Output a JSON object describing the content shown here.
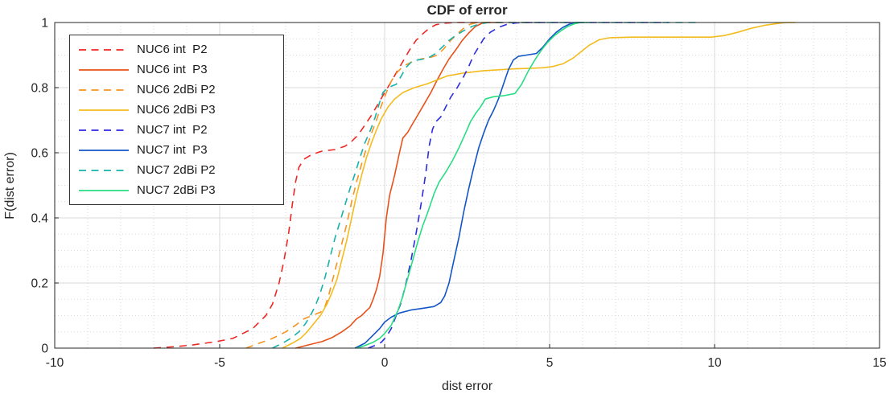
{
  "figure": {
    "title": "CDF of error",
    "xlabel": "dist error",
    "ylabel": "F(dist error)"
  },
  "axes": {
    "x": {
      "min": -10,
      "max": 15,
      "ticks": [
        -10,
        -5,
        0,
        5,
        10,
        15
      ],
      "tick_labels": [
        "-10",
        "-5",
        "0",
        "5",
        "10",
        "15"
      ],
      "minor_step": 1
    },
    "y": {
      "min": 0,
      "max": 1,
      "ticks": [
        0,
        0.2,
        0.4,
        0.6,
        0.8,
        1
      ],
      "tick_labels": [
        "0",
        "0.2",
        "0.4",
        "0.6",
        "0.8",
        "1"
      ],
      "minor_step": 0.05
    }
  },
  "style": {
    "axis_color": "#262626",
    "major_grid_color": "#d9d9d9",
    "minor_grid_color": "#d9d9d9",
    "background": "#ffffff"
  },
  "chart_data": {
    "type": "line",
    "title": "CDF of error",
    "xlabel": "dist error",
    "ylabel": "F(dist error)",
    "xlim": [
      -10,
      15
    ],
    "ylim": [
      0,
      1
    ],
    "grid": "major solid + minor dotted (x step 1, y step 0.05)",
    "legend_position": "top-left",
    "series": [
      {
        "name": "NUC6 int  P2",
        "color": "#ee2624",
        "dashed": true,
        "points": [
          [
            -7,
            0
          ],
          [
            -6.3,
            0.005
          ],
          [
            -5.8,
            0.01
          ],
          [
            -5.1,
            0.02
          ],
          [
            -4.6,
            0.03
          ],
          [
            -4.3,
            0.045
          ],
          [
            -4.0,
            0.06
          ],
          [
            -3.8,
            0.08
          ],
          [
            -3.6,
            0.1
          ],
          [
            -3.4,
            0.135
          ],
          [
            -3.2,
            0.2
          ],
          [
            -3.05,
            0.27
          ],
          [
            -2.9,
            0.36
          ],
          [
            -2.8,
            0.44
          ],
          [
            -2.7,
            0.51
          ],
          [
            -2.6,
            0.555
          ],
          [
            -2.45,
            0.58
          ],
          [
            -2.2,
            0.595
          ],
          [
            -1.9,
            0.605
          ],
          [
            -1.5,
            0.61
          ],
          [
            -1.2,
            0.62
          ],
          [
            -1.0,
            0.635
          ],
          [
            -0.8,
            0.655
          ],
          [
            -0.6,
            0.685
          ],
          [
            -0.4,
            0.715
          ],
          [
            -0.2,
            0.75
          ],
          [
            0,
            0.785
          ],
          [
            0.15,
            0.81
          ],
          [
            0.35,
            0.845
          ],
          [
            0.55,
            0.88
          ],
          [
            0.75,
            0.915
          ],
          [
            0.95,
            0.945
          ],
          [
            1.15,
            0.965
          ],
          [
            1.35,
            0.982
          ],
          [
            1.55,
            0.993
          ],
          [
            1.8,
            0.998
          ],
          [
            2.2,
            1
          ],
          [
            4.7,
            1
          ]
        ]
      },
      {
        "name": "NUC6 int  P3",
        "color": "#e8521a",
        "dashed": false,
        "points": [
          [
            -2.7,
            0
          ],
          [
            -2.3,
            0.01
          ],
          [
            -1.9,
            0.02
          ],
          [
            -1.6,
            0.032
          ],
          [
            -1.3,
            0.05
          ],
          [
            -1.05,
            0.068
          ],
          [
            -0.85,
            0.09
          ],
          [
            -0.7,
            0.1
          ],
          [
            -0.55,
            0.115
          ],
          [
            -0.45,
            0.125
          ],
          [
            -0.35,
            0.15
          ],
          [
            -0.25,
            0.18
          ],
          [
            -0.15,
            0.22
          ],
          [
            -0.05,
            0.29
          ],
          [
            0.05,
            0.4
          ],
          [
            0.15,
            0.47
          ],
          [
            0.3,
            0.53
          ],
          [
            0.45,
            0.6
          ],
          [
            0.55,
            0.645
          ],
          [
            0.7,
            0.663
          ],
          [
            0.85,
            0.69
          ],
          [
            1.0,
            0.715
          ],
          [
            1.2,
            0.75
          ],
          [
            1.4,
            0.785
          ],
          [
            1.6,
            0.825
          ],
          [
            1.8,
            0.862
          ],
          [
            1.95,
            0.888
          ],
          [
            2.15,
            0.915
          ],
          [
            2.35,
            0.945
          ],
          [
            2.55,
            0.968
          ],
          [
            2.75,
            0.988
          ],
          [
            3.0,
            1
          ],
          [
            3.5,
            1
          ]
        ]
      },
      {
        "name": "NUC6 2dBi P2",
        "color": "#f79320",
        "dashed": true,
        "points": [
          [
            -4.2,
            0
          ],
          [
            -3.8,
            0.015
          ],
          [
            -3.4,
            0.03
          ],
          [
            -3.0,
            0.05
          ],
          [
            -2.7,
            0.07
          ],
          [
            -2.45,
            0.09
          ],
          [
            -2.2,
            0.1
          ],
          [
            -1.95,
            0.11
          ],
          [
            -1.8,
            0.13
          ],
          [
            -1.7,
            0.16
          ],
          [
            -1.6,
            0.2
          ],
          [
            -1.45,
            0.26
          ],
          [
            -1.3,
            0.32
          ],
          [
            -1.15,
            0.38
          ],
          [
            -1.0,
            0.45
          ],
          [
            -0.85,
            0.51
          ],
          [
            -0.7,
            0.565
          ],
          [
            -0.55,
            0.615
          ],
          [
            -0.4,
            0.66
          ],
          [
            -0.25,
            0.7
          ],
          [
            -0.1,
            0.745
          ],
          [
            0.05,
            0.785
          ],
          [
            0.2,
            0.82
          ],
          [
            0.4,
            0.85
          ],
          [
            0.6,
            0.868
          ],
          [
            0.85,
            0.88
          ],
          [
            1.1,
            0.888
          ],
          [
            1.4,
            0.893
          ],
          [
            1.6,
            0.9
          ],
          [
            1.8,
            0.92
          ],
          [
            2.0,
            0.945
          ],
          [
            2.2,
            0.965
          ],
          [
            2.4,
            0.983
          ],
          [
            2.6,
            0.995
          ],
          [
            2.8,
            1
          ],
          [
            3.1,
            1
          ]
        ]
      },
      {
        "name": "NUC6 2dBi P3",
        "color": "#f3bc1e",
        "dashed": false,
        "points": [
          [
            -3.1,
            0
          ],
          [
            -2.8,
            0.015
          ],
          [
            -2.55,
            0.03
          ],
          [
            -2.35,
            0.05
          ],
          [
            -2.15,
            0.075
          ],
          [
            -1.95,
            0.1
          ],
          [
            -1.75,
            0.135
          ],
          [
            -1.6,
            0.17
          ],
          [
            -1.45,
            0.21
          ],
          [
            -1.3,
            0.27
          ],
          [
            -1.15,
            0.33
          ],
          [
            -1.0,
            0.4
          ],
          [
            -0.85,
            0.47
          ],
          [
            -0.7,
            0.53
          ],
          [
            -0.55,
            0.585
          ],
          [
            -0.4,
            0.63
          ],
          [
            -0.25,
            0.67
          ],
          [
            -0.1,
            0.705
          ],
          [
            0.1,
            0.74
          ],
          [
            0.3,
            0.765
          ],
          [
            0.55,
            0.785
          ],
          [
            0.9,
            0.8
          ],
          [
            1.3,
            0.812
          ],
          [
            1.9,
            0.836
          ],
          [
            2.4,
            0.845
          ],
          [
            3.0,
            0.852
          ],
          [
            3.8,
            0.857
          ],
          [
            4.8,
            0.861
          ],
          [
            5.1,
            0.865
          ],
          [
            5.4,
            0.873
          ],
          [
            5.7,
            0.89
          ],
          [
            5.95,
            0.91
          ],
          [
            6.2,
            0.93
          ],
          [
            6.5,
            0.947
          ],
          [
            6.8,
            0.953
          ],
          [
            7.5,
            0.955
          ],
          [
            9.9,
            0.955
          ],
          [
            10.3,
            0.96
          ],
          [
            10.7,
            0.97
          ],
          [
            11.1,
            0.982
          ],
          [
            11.5,
            0.991
          ],
          [
            11.9,
            0.997
          ],
          [
            12.2,
            1
          ],
          [
            12.45,
            1
          ]
        ]
      },
      {
        "name": "NUC7 int  P2",
        "color": "#2b2be0",
        "dashed": true,
        "points": [
          [
            -0.5,
            0
          ],
          [
            -0.3,
            0.008
          ],
          [
            -0.1,
            0.018
          ],
          [
            0.05,
            0.035
          ],
          [
            0.2,
            0.06
          ],
          [
            0.35,
            0.1
          ],
          [
            0.5,
            0.14
          ],
          [
            0.65,
            0.2
          ],
          [
            0.8,
            0.27
          ],
          [
            0.95,
            0.35
          ],
          [
            1.1,
            0.44
          ],
          [
            1.25,
            0.54
          ],
          [
            1.35,
            0.62
          ],
          [
            1.45,
            0.672
          ],
          [
            1.55,
            0.695
          ],
          [
            1.7,
            0.71
          ],
          [
            1.85,
            0.74
          ],
          [
            2.0,
            0.77
          ],
          [
            2.2,
            0.8
          ],
          [
            2.4,
            0.835
          ],
          [
            2.55,
            0.865
          ],
          [
            2.7,
            0.9
          ],
          [
            2.85,
            0.925
          ],
          [
            3.0,
            0.95
          ],
          [
            3.2,
            0.97
          ],
          [
            3.45,
            0.985
          ],
          [
            3.7,
            0.994
          ],
          [
            4.0,
            0.999
          ],
          [
            4.3,
            1
          ],
          [
            8.6,
            1
          ]
        ]
      },
      {
        "name": "NUC7 int  P3",
        "color": "#1355c8",
        "dashed": false,
        "points": [
          [
            -0.9,
            0
          ],
          [
            -0.6,
            0.015
          ],
          [
            -0.35,
            0.04
          ],
          [
            -0.15,
            0.06
          ],
          [
            0,
            0.08
          ],
          [
            0.2,
            0.095
          ],
          [
            0.45,
            0.108
          ],
          [
            0.8,
            0.117
          ],
          [
            1.2,
            0.123
          ],
          [
            1.5,
            0.128
          ],
          [
            1.7,
            0.14
          ],
          [
            1.82,
            0.16
          ],
          [
            1.95,
            0.2
          ],
          [
            2.1,
            0.27
          ],
          [
            2.25,
            0.34
          ],
          [
            2.4,
            0.42
          ],
          [
            2.55,
            0.49
          ],
          [
            2.7,
            0.555
          ],
          [
            2.85,
            0.615
          ],
          [
            3.0,
            0.66
          ],
          [
            3.15,
            0.7
          ],
          [
            3.3,
            0.73
          ],
          [
            3.45,
            0.765
          ],
          [
            3.6,
            0.81
          ],
          [
            3.75,
            0.855
          ],
          [
            3.9,
            0.885
          ],
          [
            4.05,
            0.896
          ],
          [
            4.3,
            0.9
          ],
          [
            4.6,
            0.905
          ],
          [
            4.8,
            0.925
          ],
          [
            5.0,
            0.95
          ],
          [
            5.2,
            0.97
          ],
          [
            5.4,
            0.985
          ],
          [
            5.6,
            0.995
          ],
          [
            5.8,
            1
          ],
          [
            6.05,
            1
          ]
        ]
      },
      {
        "name": "NUC7 2dBi P2",
        "color": "#16b3ab",
        "dashed": true,
        "points": [
          [
            -3.4,
            0
          ],
          [
            -3.1,
            0.015
          ],
          [
            -2.85,
            0.03
          ],
          [
            -2.6,
            0.05
          ],
          [
            -2.4,
            0.075
          ],
          [
            -2.25,
            0.1
          ],
          [
            -2.1,
            0.13
          ],
          [
            -1.95,
            0.17
          ],
          [
            -1.8,
            0.22
          ],
          [
            -1.65,
            0.28
          ],
          [
            -1.5,
            0.34
          ],
          [
            -1.35,
            0.39
          ],
          [
            -1.2,
            0.44
          ],
          [
            -1.05,
            0.49
          ],
          [
            -0.9,
            0.535
          ],
          [
            -0.75,
            0.585
          ],
          [
            -0.6,
            0.63
          ],
          [
            -0.45,
            0.665
          ],
          [
            -0.3,
            0.705
          ],
          [
            -0.15,
            0.755
          ],
          [
            -0.05,
            0.785
          ],
          [
            0.1,
            0.8
          ],
          [
            0.35,
            0.81
          ],
          [
            0.5,
            0.835
          ],
          [
            0.65,
            0.862
          ],
          [
            0.8,
            0.878
          ],
          [
            1.0,
            0.885
          ],
          [
            1.3,
            0.89
          ],
          [
            1.55,
            0.905
          ],
          [
            1.75,
            0.925
          ],
          [
            1.95,
            0.945
          ],
          [
            2.15,
            0.96
          ],
          [
            2.4,
            0.975
          ],
          [
            2.65,
            0.988
          ],
          [
            2.9,
            0.996
          ],
          [
            3.15,
            1
          ],
          [
            9.5,
            1
          ]
        ]
      },
      {
        "name": "NUC7 2dBi P3",
        "color": "#2add85",
        "dashed": false,
        "points": [
          [
            -0.85,
            0
          ],
          [
            -0.6,
            0.008
          ],
          [
            -0.35,
            0.018
          ],
          [
            -0.15,
            0.03
          ],
          [
            0,
            0.045
          ],
          [
            0.2,
            0.07
          ],
          [
            0.4,
            0.115
          ],
          [
            0.55,
            0.16
          ],
          [
            0.7,
            0.215
          ],
          [
            0.85,
            0.27
          ],
          [
            1.0,
            0.325
          ],
          [
            1.15,
            0.375
          ],
          [
            1.3,
            0.415
          ],
          [
            1.5,
            0.475
          ],
          [
            1.65,
            0.51
          ],
          [
            1.85,
            0.54
          ],
          [
            2.05,
            0.575
          ],
          [
            2.25,
            0.615
          ],
          [
            2.45,
            0.66
          ],
          [
            2.6,
            0.695
          ],
          [
            2.75,
            0.72
          ],
          [
            2.9,
            0.74
          ],
          [
            3.05,
            0.765
          ],
          [
            3.3,
            0.772
          ],
          [
            3.6,
            0.775
          ],
          [
            3.95,
            0.782
          ],
          [
            4.15,
            0.81
          ],
          [
            4.35,
            0.85
          ],
          [
            4.55,
            0.885
          ],
          [
            4.75,
            0.915
          ],
          [
            4.95,
            0.94
          ],
          [
            5.15,
            0.96
          ],
          [
            5.35,
            0.975
          ],
          [
            5.55,
            0.988
          ],
          [
            5.75,
            0.996
          ],
          [
            5.95,
            1
          ],
          [
            6.15,
            1
          ]
        ]
      }
    ]
  }
}
